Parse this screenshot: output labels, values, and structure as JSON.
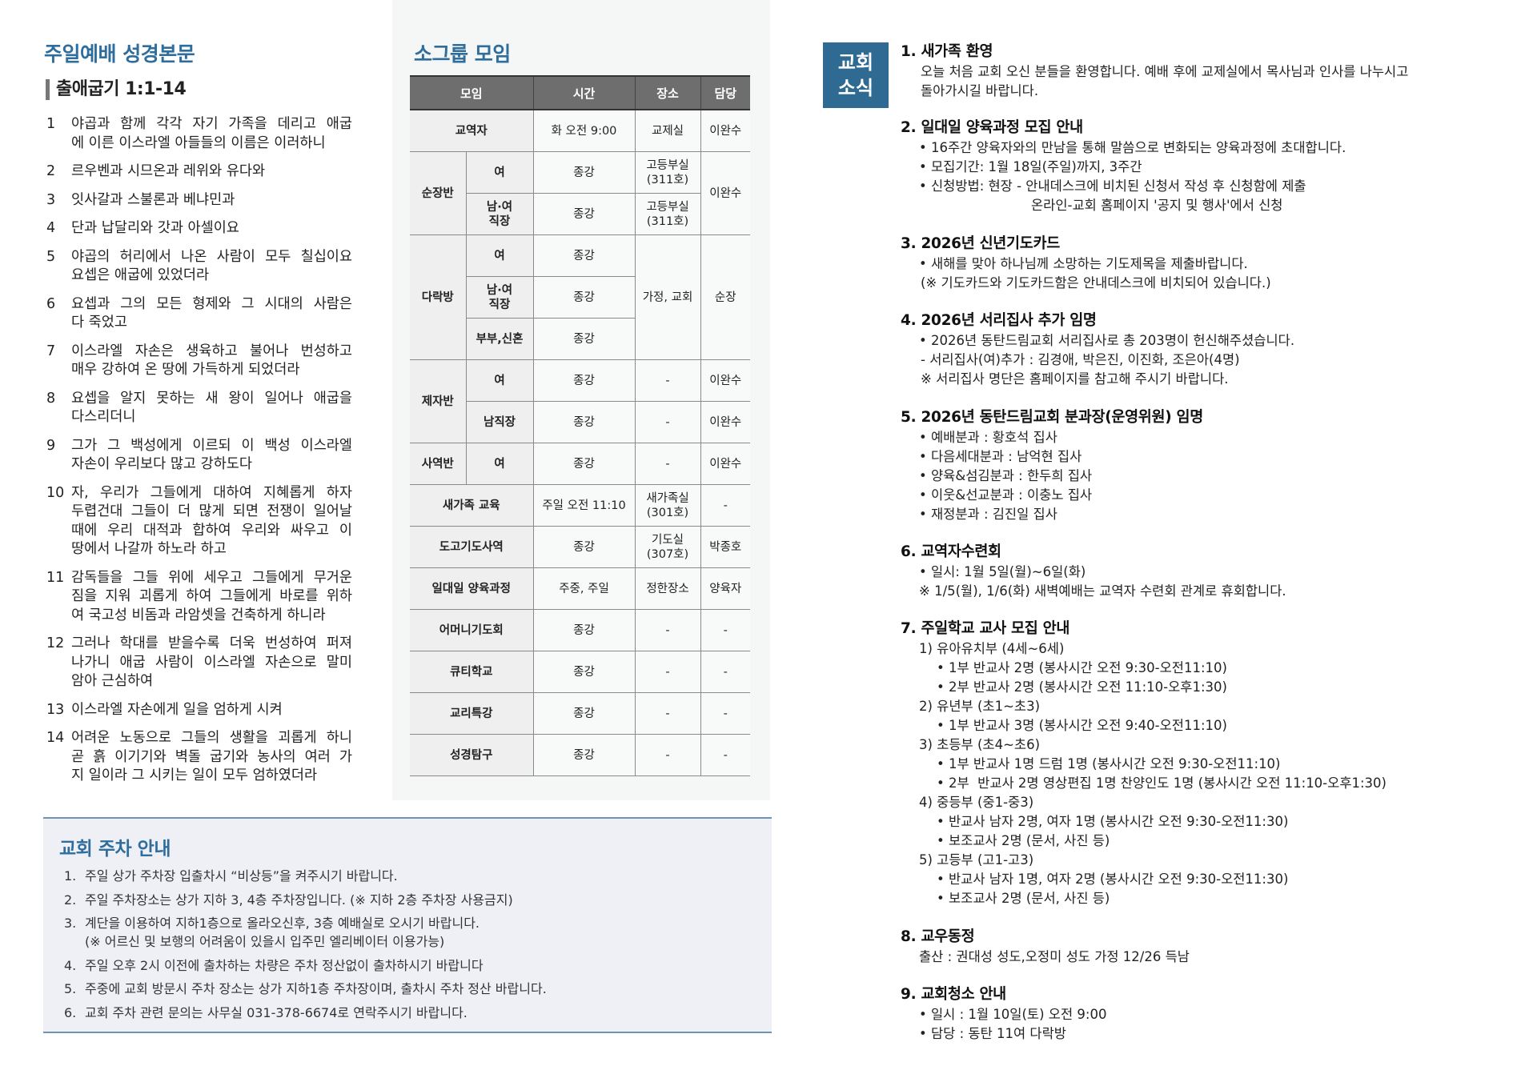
{
  "bible": {
    "title": "주일예배 성경본문",
    "reference": "출애굽기 1:1-14",
    "verses": [
      {
        "num": "1",
        "lines": [
          "야곱과 함께 각각 자기 가족을 데리고 애굽",
          "에 이른 이스라엘 아들들의 이름은 이러하니"
        ]
      },
      {
        "num": "2",
        "lines": [
          "르우벤과 시므온과 레위와 유다와"
        ]
      },
      {
        "num": "3",
        "lines": [
          "잇사갈과 스불론과 베냐민과"
        ]
      },
      {
        "num": "4",
        "lines": [
          "단과 납달리와 갓과 아셀이요"
        ]
      },
      {
        "num": "5",
        "lines": [
          "야곱의 허리에서 나온 사람이 모두 칠십이요",
          "요셉은 애굽에 있었더라"
        ]
      },
      {
        "num": "6",
        "lines": [
          "요셉과 그의 모든 형제와 그 시대의 사람은",
          "다 죽었고"
        ]
      },
      {
        "num": "7",
        "lines": [
          "이스라엘 자손은 생육하고 불어나 번성하고",
          "매우 강하여 온 땅에 가득하게 되었더라"
        ]
      },
      {
        "num": "8",
        "lines": [
          "요셉을 알지 못하는 새 왕이 일어나 애굽을",
          "다스리더니"
        ]
      },
      {
        "num": "9",
        "lines": [
          "그가 그 백성에게 이르되 이 백성 이스라엘",
          "자손이 우리보다 많고 강하도다"
        ]
      },
      {
        "num": "10",
        "lines": [
          "자, 우리가 그들에게 대하여 지혜롭게 하자",
          "두렵건대 그들이 더 많게 되면 전쟁이 일어날",
          "때에 우리 대적과 합하여 우리와 싸우고 이",
          "땅에서 나갈까 하노라 하고"
        ]
      },
      {
        "num": "11",
        "lines": [
          "감독들을 그들 위에 세우고 그들에게 무거운",
          "짐을 지워 괴롭게 하여 그들에게 바로를 위하",
          "여 국고성 비돔과 라암셋을 건축하게 하니라"
        ]
      },
      {
        "num": "12",
        "lines": [
          "그러나 학대를 받을수록 더욱 번성하여 퍼져",
          "나가니 애굽 사람이 이스라엘 자손으로 말미",
          "암아 근심하여"
        ]
      },
      {
        "num": "13",
        "lines": [
          "이스라엘 자손에게 일을 엄하게 시켜"
        ]
      },
      {
        "num": "14",
        "lines": [
          "어려운 노동으로 그들의 생활을 괴롭게 하니",
          "곧 흙 이기기와 벽돌 굽기와 농사의 여러 가",
          "지 일이라 그 시키는 일이 모두 엄하였더라"
        ]
      }
    ]
  },
  "small_groups": {
    "title": "소그룹 모임",
    "columns": [
      {
        "label": "모임",
        "span": 2
      },
      {
        "label": "시간",
        "span": 1
      },
      {
        "label": "장소",
        "span": 1
      },
      {
        "label": "담당",
        "span": 1
      }
    ],
    "rows": [
      [
        {
          "t": "교역자",
          "h": 1,
          "cs": 2
        },
        {
          "t": "화 오전 9:00"
        },
        {
          "t": "교제실"
        },
        {
          "t": "이완수"
        }
      ],
      [
        {
          "t": "순장반",
          "h": 1,
          "rs": 2
        },
        {
          "t": "여",
          "h": 1
        },
        {
          "t": "종강"
        },
        {
          "t": "고등부실\n(311호)"
        },
        {
          "t": "이완수",
          "rs": 2
        }
      ],
      [
        {
          "t": "남·여\n직장",
          "h": 1
        },
        {
          "t": "종강"
        },
        {
          "t": "고등부실\n(311호)"
        }
      ],
      [
        {
          "t": "다락방",
          "h": 1,
          "rs": 3
        },
        {
          "t": "여",
          "h": 1
        },
        {
          "t": "종강"
        },
        {
          "t": "가정, 교회",
          "rs": 3
        },
        {
          "t": "순장",
          "rs": 3
        }
      ],
      [
        {
          "t": "남·여\n직장",
          "h": 1
        },
        {
          "t": "종강"
        }
      ],
      [
        {
          "t": "부부,신혼",
          "h": 1
        },
        {
          "t": "종강"
        }
      ],
      [
        {
          "t": "제자반",
          "h": 1,
          "rs": 2
        },
        {
          "t": "여",
          "h": 1
        },
        {
          "t": "종강"
        },
        {
          "t": "-"
        },
        {
          "t": "이완수"
        }
      ],
      [
        {
          "t": "남직장",
          "h": 1
        },
        {
          "t": "종강"
        },
        {
          "t": "-"
        },
        {
          "t": "이완수"
        }
      ],
      [
        {
          "t": "사역반",
          "h": 1
        },
        {
          "t": "여",
          "h": 1
        },
        {
          "t": "종강"
        },
        {
          "t": "-"
        },
        {
          "t": "이완수"
        }
      ],
      [
        {
          "t": "새가족 교육",
          "h": 1,
          "cs": 2
        },
        {
          "t": "주일 오전 11:10"
        },
        {
          "t": "새가족실\n(301호)"
        },
        {
          "t": "-"
        }
      ],
      [
        {
          "t": "도고기도사역",
          "h": 1,
          "cs": 2
        },
        {
          "t": "종강"
        },
        {
          "t": "기도실\n(307호)"
        },
        {
          "t": "박종호"
        }
      ],
      [
        {
          "t": "일대일 양육과정",
          "h": 1,
          "cs": 2
        },
        {
          "t": "주중, 주일"
        },
        {
          "t": "정한장소"
        },
        {
          "t": "양육자"
        }
      ],
      [
        {
          "t": "어머니기도회",
          "h": 1,
          "cs": 2
        },
        {
          "t": "종강"
        },
        {
          "t": "-"
        },
        {
          "t": "-"
        }
      ],
      [
        {
          "t": "큐티학교",
          "h": 1,
          "cs": 2
        },
        {
          "t": "종강"
        },
        {
          "t": "-"
        },
        {
          "t": "-"
        }
      ],
      [
        {
          "t": "교리특강",
          "h": 1,
          "cs": 2
        },
        {
          "t": "종강"
        },
        {
          "t": "-"
        },
        {
          "t": "-"
        }
      ],
      [
        {
          "t": "성경탐구",
          "h": 1,
          "cs": 2
        },
        {
          "t": "종강"
        },
        {
          "t": "-"
        },
        {
          "t": "-"
        }
      ]
    ]
  },
  "parking": {
    "title": "교회 주차 안내",
    "items": [
      {
        "num": "1.",
        "lines": [
          "주일 상가 주차장 입출차시 “비상등”을 켜주시기 바랍니다."
        ]
      },
      {
        "num": "2.",
        "lines": [
          "주일 주차장소는 상가 지하 3, 4층 주차장입니다. (※ 지하 2층 주차장 사용금지)"
        ]
      },
      {
        "num": "3.",
        "lines": [
          "계단을 이용하여 지하1층으로 올라오신후, 3층 예배실로 오시기 바랍니다.",
          "(※ 어르신 및 보행의 어려움이 있을시 입주민 엘리베이터 이용가능)"
        ]
      },
      {
        "num": "4.",
        "lines": [
          "주일 오후 2시 이전에 출차하는 차량은 주차 정산없이 출차하시기 바랍니다"
        ]
      },
      {
        "num": "5.",
        "lines": [
          "주중에 교회 방문시 주차 장소는 상가 지하1층 주차장이며, 출차시 주차 정산 바랍니다."
        ]
      },
      {
        "num": "6.",
        "lines": [
          "교회 주차 관련 문의는 사무실 031-378-6674로 연락주시기 바랍니다."
        ]
      }
    ]
  },
  "news": {
    "badge": [
      "교회",
      "소식"
    ],
    "badge_color": "#2f6a93",
    "sections": [
      {
        "heading": "1. 새가족 환영",
        "lines": [
          {
            "t": "오늘 처음 교회 오신 분들을 환영합니다. 예배 후에 교제실에서 목사님과 인사를 나누시고",
            "l": "l0"
          },
          {
            "t": "돌아가시길 바랍니다.",
            "l": "l0"
          }
        ]
      },
      {
        "heading": "2. 일대일 양육과정 모집 안내",
        "lines": [
          {
            "t": "• 16주간 양육자와의 만남을 통해 말씀으로 변화되는 양육과정에 초대합니다.",
            "l": "lb"
          },
          {
            "t": "• 모집기간: 1월 18일(주일)까지, 3주간",
            "l": "lb"
          },
          {
            "t": "• 신청방법: 현장 - 안내데스크에 비치된 신청서 작성 후 신청함에 제출",
            "l": "lb"
          },
          {
            "t": "온라인-교회 홈페이지 '공지 및 행사'에서 신청",
            "l": "l2"
          }
        ]
      },
      {
        "heading": "3. 2026년 신년기도카드",
        "lines": [
          {
            "t": "• 새해를 맞아 하나님께 소망하는 기도제목을 제출바랍니다.",
            "l": "lb"
          },
          {
            "t": "(※ 기도카드와 기도카드함은 안내데스크에 비치되어 있습니다.)",
            "l": "l0"
          }
        ]
      },
      {
        "heading": "4. 2026년 서리집사 추가 임명",
        "lines": [
          {
            "t": "• 2026년 동탄드림교회 서리집사로 총 203명이 헌신해주셨습니다.",
            "l": "lb"
          },
          {
            "t": "- 서리집사(여)추가 : 김경애, 박은진, 이진화, 조은아(4명)",
            "l": "l0"
          },
          {
            "t": "※ 서리집사 명단은 홈페이지를 참고해 주시기 바랍니다.",
            "l": "l0"
          }
        ]
      },
      {
        "heading": "5. 2026년 동탄드림교회 분과장(운영위원) 임명",
        "lines": [
          {
            "t": "• 예배분과 : 황호석 집사",
            "l": "lb"
          },
          {
            "t": "• 다음세대분과 : 남억현 집사",
            "l": "lb"
          },
          {
            "t": "• 양육&섬김분과 : 한두희 집사",
            "l": "lb"
          },
          {
            "t": "• 이웃&선교분과 : 이충노 집사",
            "l": "lb"
          },
          {
            "t": "• 재정분과 : 김진일 집사",
            "l": "lb"
          }
        ]
      },
      {
        "heading": "6. 교역자수련회",
        "lines": [
          {
            "t": "• 일시: 1월 5일(월)~6일(화)",
            "l": "lb"
          },
          {
            "t": "※ 1/5(월), 1/6(화) 새벽예배는 교역자 수련회 관계로 휴회합니다.",
            "l": "lb"
          }
        ]
      },
      {
        "heading": "7. 주일학교 교사 모집 안내",
        "lines": [
          {
            "t": "1) 유아유치부 (4세~6세)",
            "l": "lb"
          },
          {
            "t": "• 1부 반교사 2명 (봉사시간 오전 9:30-오전11:10)",
            "l": "l1"
          },
          {
            "t": "• 2부 반교사 2명 (봉사시간 오전 11:10-오후1:30)",
            "l": "l1"
          },
          {
            "t": "2) 유년부 (초1~초3)",
            "l": "lb"
          },
          {
            "t": "• 1부 반교사 3명 (봉사시간 오전 9:40-오전11:10)",
            "l": "l1"
          },
          {
            "t": "3) 초등부 (초4~초6)",
            "l": "lb"
          },
          {
            "t": "• 1부 반교사 1명 드럼 1명 (봉사시간 오전 9:30-오전11:10)",
            "l": "l1"
          },
          {
            "t": "• 2부  반교사 2명 영상편집 1명 찬양인도 1명 (봉사시간 오전 11:10-오후1:30)",
            "l": "l1"
          },
          {
            "t": "4) 중등부 (중1-중3)",
            "l": "lb"
          },
          {
            "t": "• 반교사 남자 2명, 여자 1명 (봉사시간 오전 9:30-오전11:30)",
            "l": "l1"
          },
          {
            "t": "• 보조교사 2명 (문서, 사진 등)",
            "l": "l1"
          },
          {
            "t": "5) 고등부 (고1-고3)",
            "l": "lb"
          },
          {
            "t": "• 반교사 남자 1명, 여자 2명 (봉사시간 오전 9:30-오전11:30)",
            "l": "l1"
          },
          {
            "t": "• 보조교사 2명 (문서, 사진 등)",
            "l": "l1"
          }
        ]
      },
      {
        "heading": "8. 교우동정",
        "lines": [
          {
            "t": "출산 : 권대성 성도,오정미 성도 가정 12/26 득남",
            "l": "lb"
          }
        ]
      },
      {
        "heading": "9. 교회청소 안내",
        "lines": [
          {
            "t": "• 일시 : 1월 10일(토) 오전 9:00",
            "l": "lb"
          },
          {
            "t": "• 담당 : 동탄 11여 다락방",
            "l": "lb"
          }
        ]
      }
    ]
  }
}
